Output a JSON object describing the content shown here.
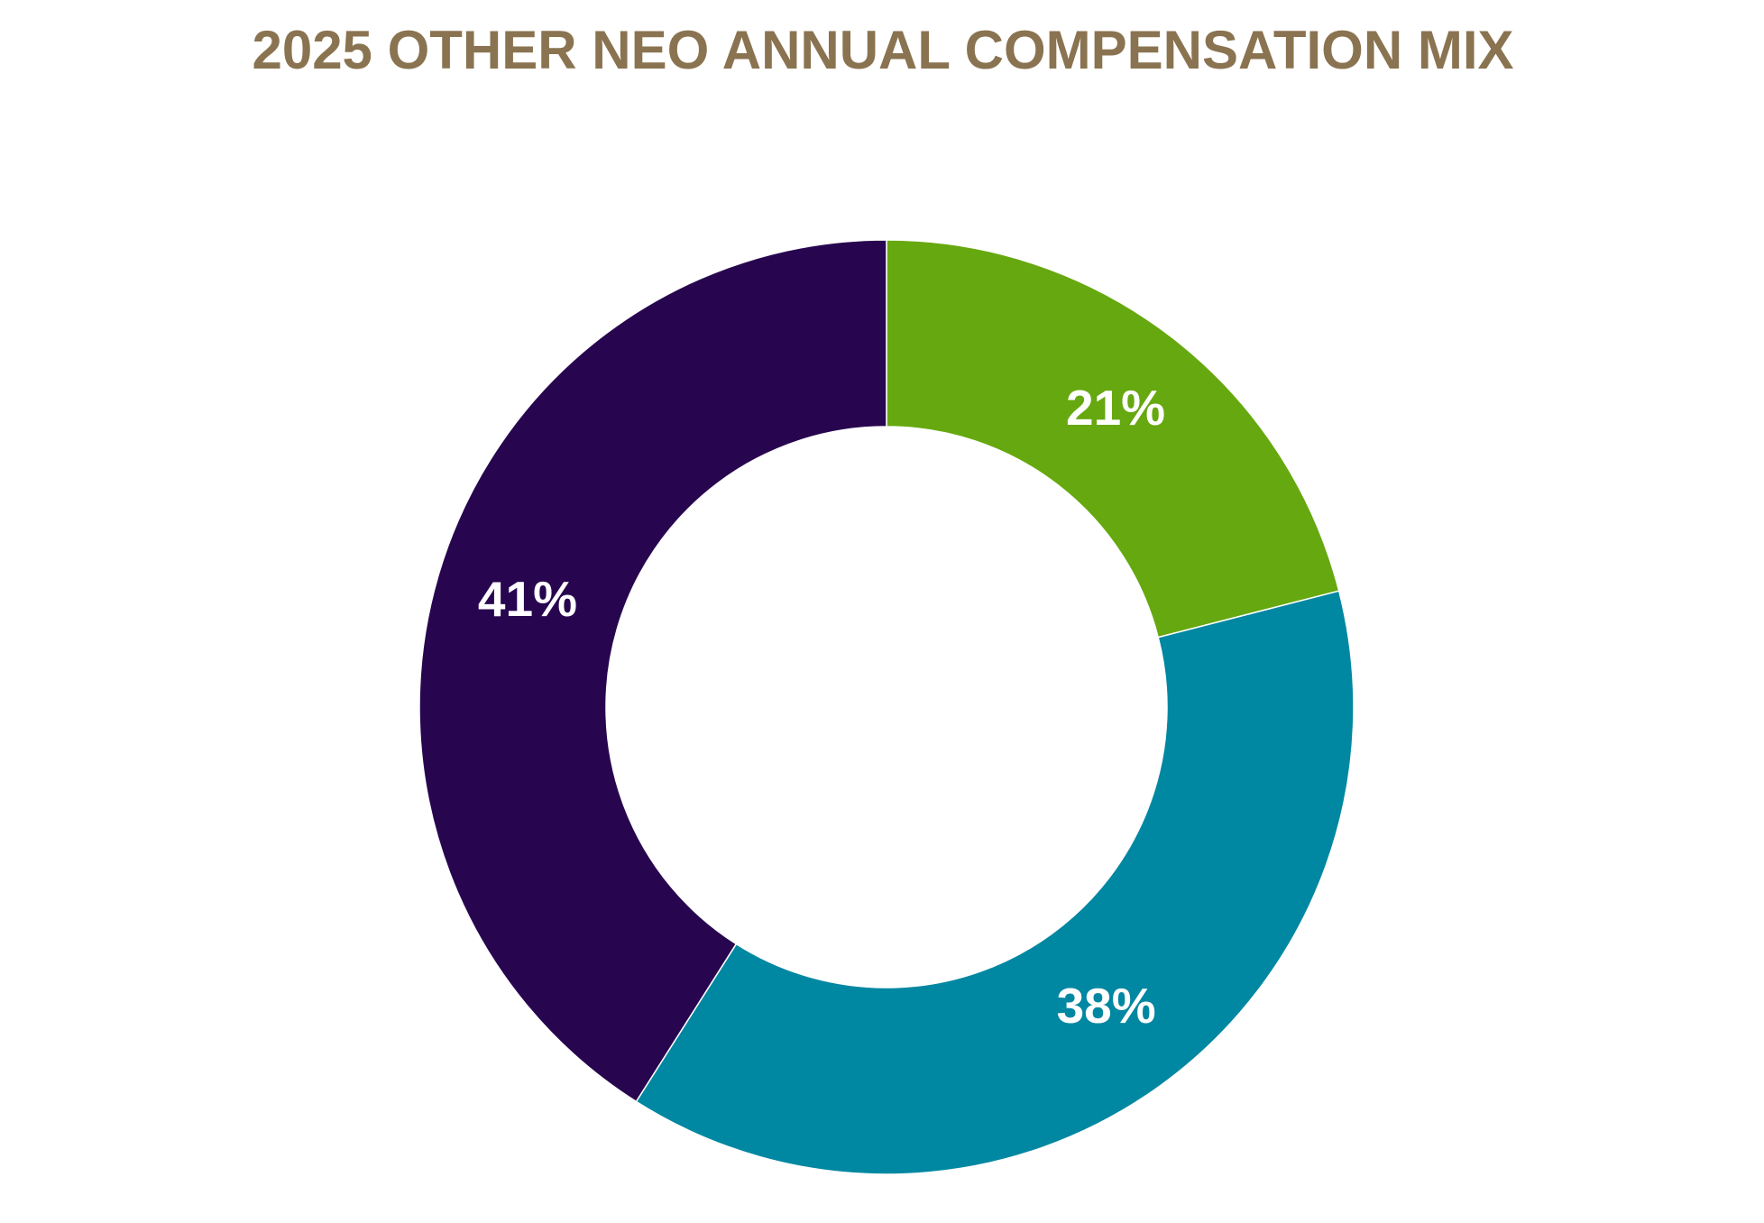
{
  "chart_data": {
    "type": "donut",
    "title": "2025 OTHER NEO ANNUAL COMPENSATION MIX",
    "values": [
      21,
      38,
      41
    ],
    "value_labels": [
      "21%",
      "38%",
      "41%"
    ],
    "colors": [
      "#66a80f",
      "#0087a1",
      "#27064f"
    ]
  }
}
